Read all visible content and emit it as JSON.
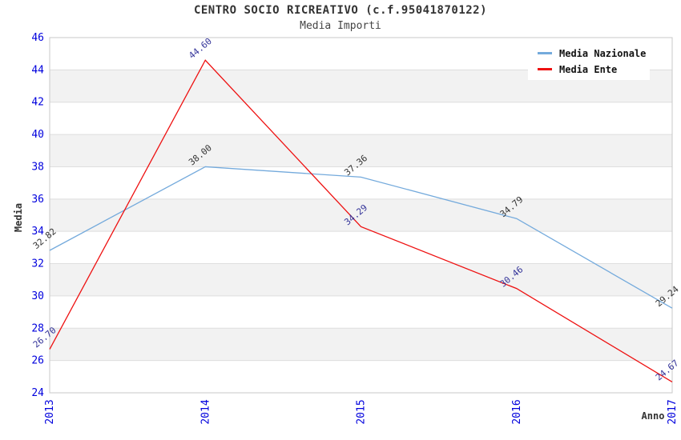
{
  "header": {
    "title": "CENTRO SOCIO RICREATIVO (c.f.95041870122)",
    "subtitle": "Media Importi"
  },
  "chart_data": {
    "type": "line",
    "title": "CENTRO SOCIO RICREATIVO (c.f.95041870122)",
    "subtitle": "Media Importi",
    "xlabel": "Anno",
    "ylabel": "Media",
    "x": [
      "2013",
      "2014",
      "2015",
      "2016",
      "2017"
    ],
    "series": [
      {
        "name": "Media Nazionale",
        "color": "#74aadc",
        "label_color": "#333333",
        "values": [
          32.82,
          38.0,
          37.36,
          34.79,
          29.24
        ]
      },
      {
        "name": "Media Ente",
        "color": "#ee1111",
        "label_color": "#333399",
        "values": [
          26.7,
          44.6,
          34.29,
          30.46,
          24.67
        ]
      }
    ],
    "ylim": [
      24,
      46
    ],
    "ytick_step": 2,
    "tick_label_color": "#0000dd",
    "axis_title_color": "#333333",
    "band_colors": [
      "#ffffff",
      "#f2f2f2"
    ],
    "grid": "horizontal-bands",
    "gridline_color": "#dedede",
    "plot_border_color": "#c8c8c8",
    "legend_position": "top-right"
  }
}
